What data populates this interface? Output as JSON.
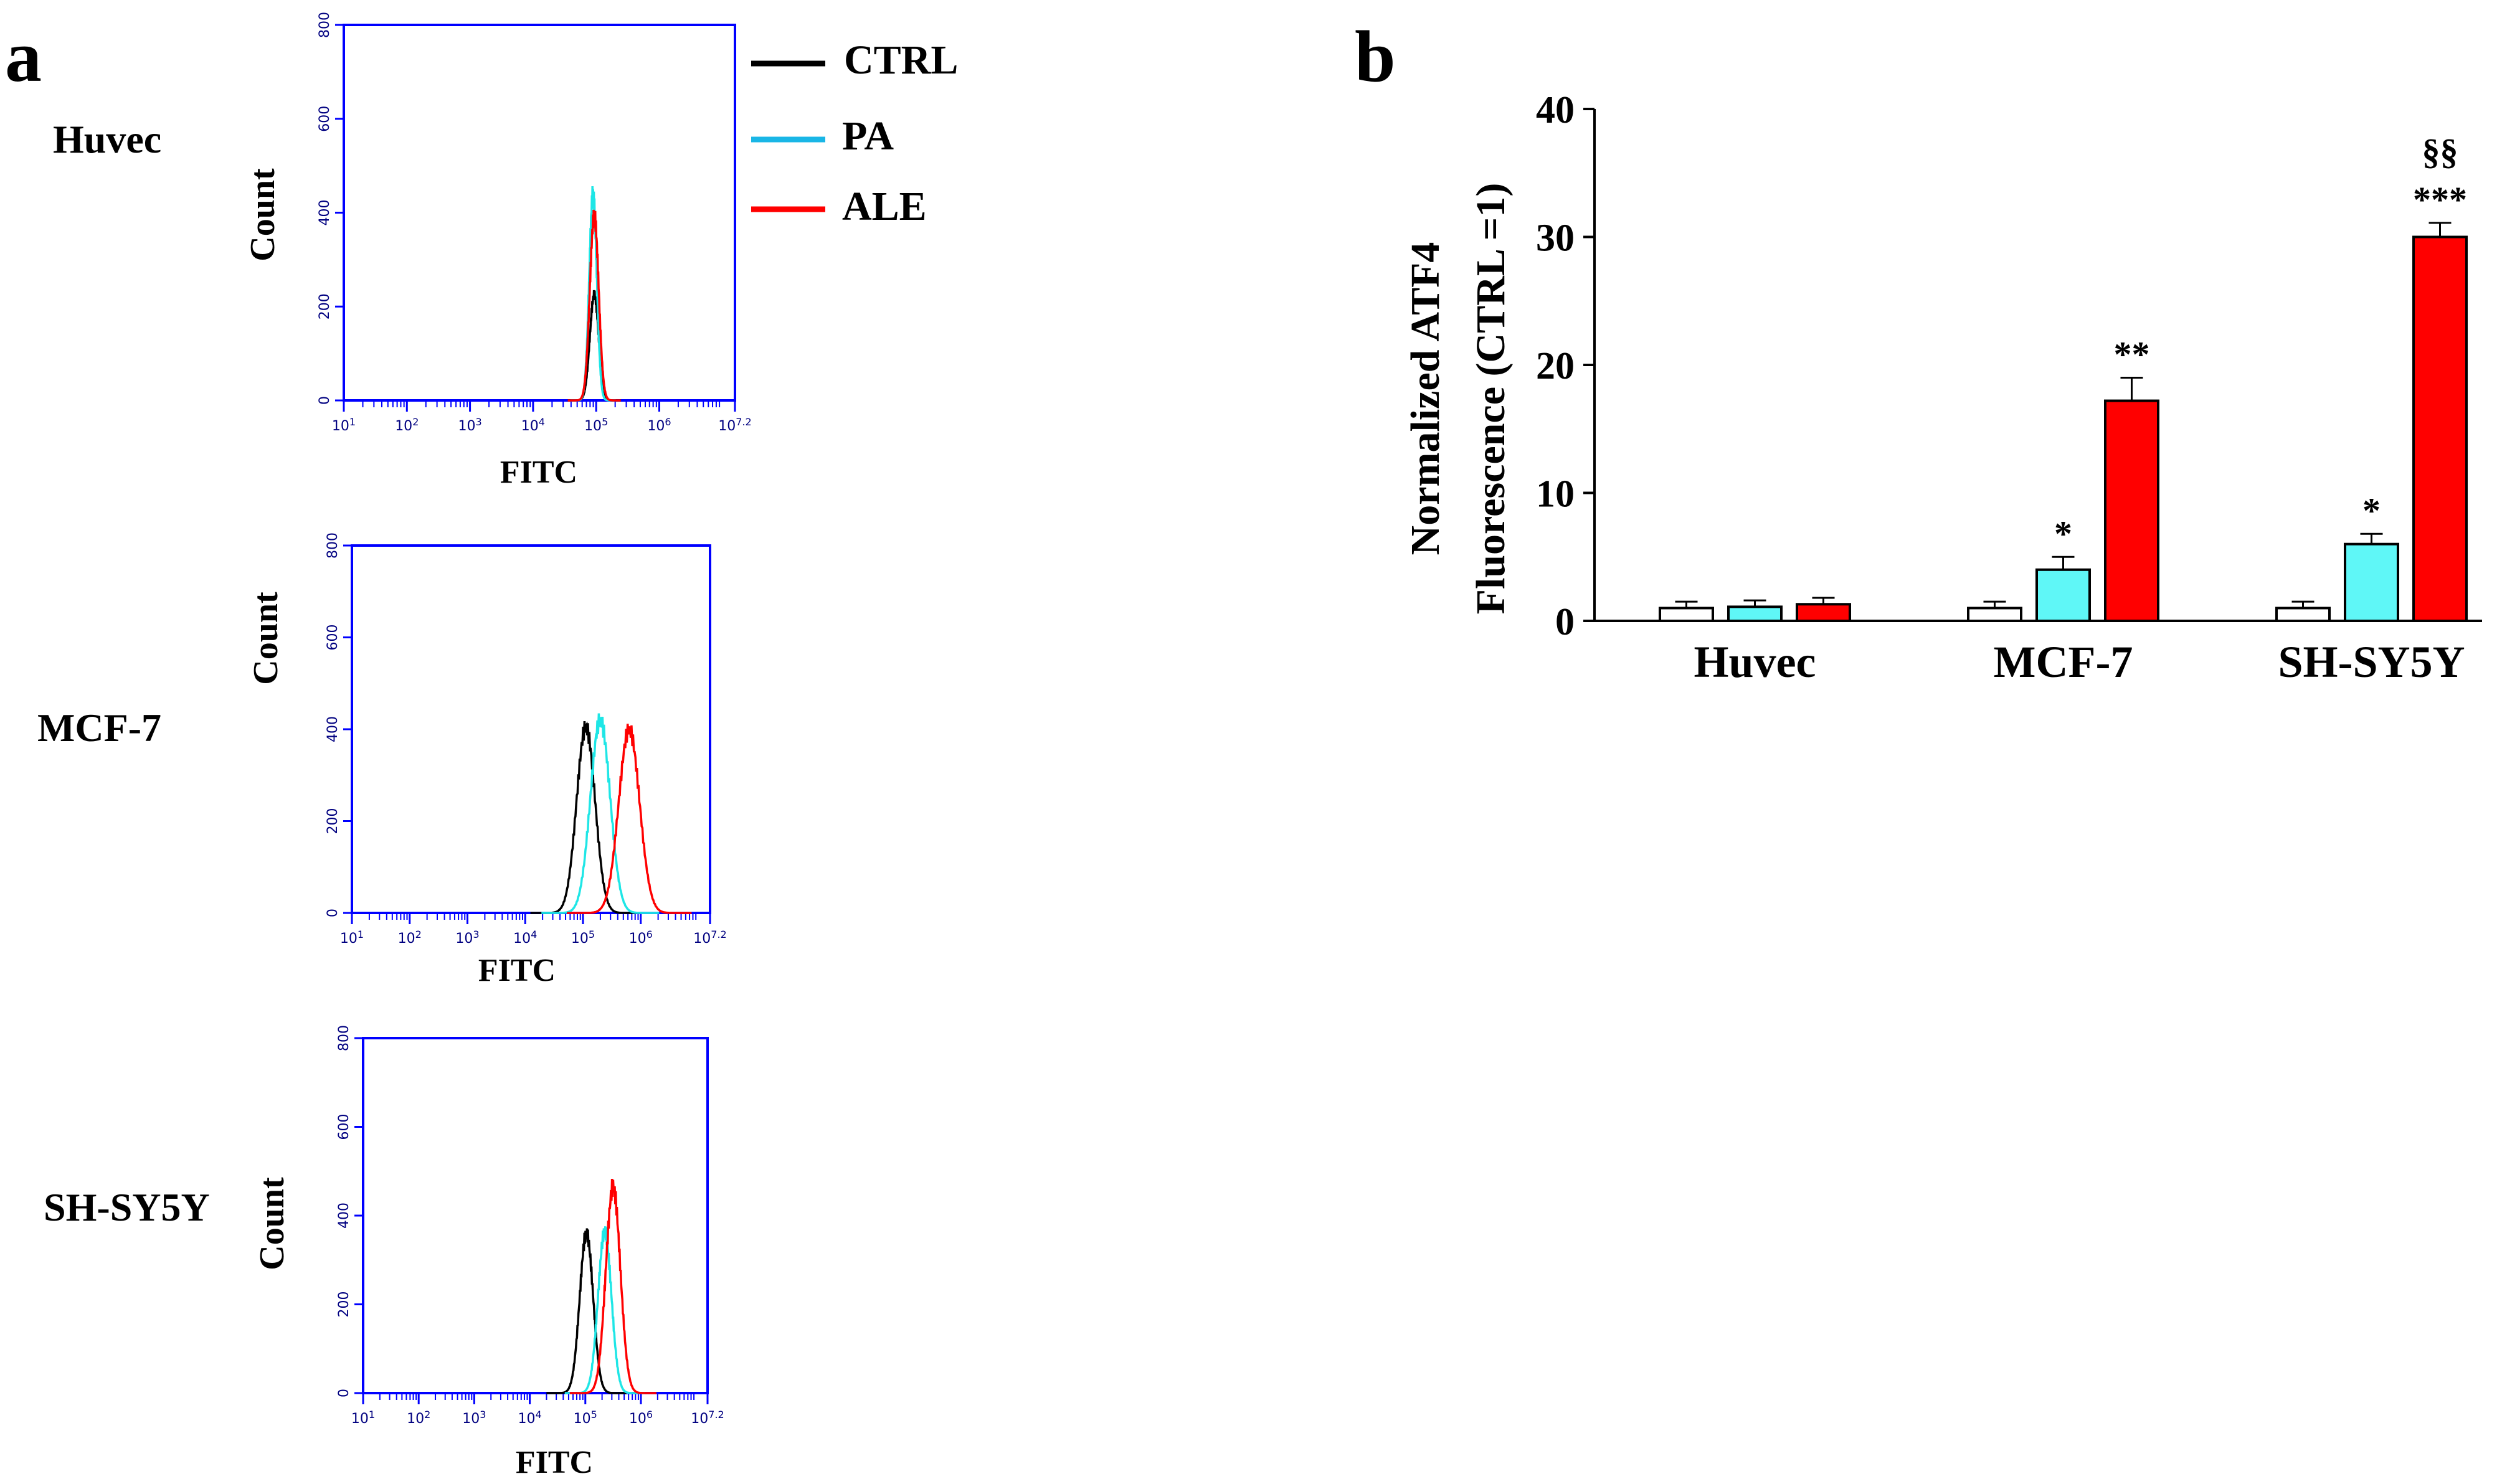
{
  "figure": {
    "panel_a_label": "a",
    "panel_b_label": "b",
    "legend": [
      {
        "name": "CTRL",
        "color": "#000000"
      },
      {
        "name": "PA",
        "color": "#19b6e6"
      },
      {
        "name": "ALE",
        "color": "#ff0000"
      }
    ]
  },
  "chart_data": [
    {
      "type": "line",
      "panel": "a",
      "title": "Huvec",
      "xlabel": "FITC",
      "ylabel": "Count",
      "xscale": "log",
      "xlim": [
        1,
        7.2
      ],
      "ylim": [
        0,
        800
      ],
      "yticks": [
        "0",
        "200",
        "400",
        "600",
        "800"
      ],
      "xticks": [
        "10^1",
        "10^2",
        "10^3",
        "10^4",
        "10^5",
        "10^6",
        "10^7.2"
      ],
      "series": [
        {
          "name": "CTRL",
          "color": "#000000",
          "peak_log": 4.97,
          "peak": 225,
          "width": 0.07
        },
        {
          "name": "PA",
          "color": "#1ee6e6",
          "peak_log": 4.95,
          "peak": 440,
          "width": 0.06
        },
        {
          "name": "ALE",
          "color": "#ff0000",
          "peak_log": 4.97,
          "peak": 395,
          "width": 0.07
        }
      ]
    },
    {
      "type": "line",
      "panel": "a",
      "title": "MCF-7",
      "xlabel": "FITC",
      "ylabel": "Count",
      "xscale": "log",
      "xlim": [
        1,
        7.2
      ],
      "ylim": [
        0,
        800
      ],
      "yticks": [
        "0",
        "200",
        "400",
        "600",
        "800"
      ],
      "xticks": [
        "10^1",
        "10^2",
        "10^3",
        "10^4",
        "10^5",
        "10^6",
        "10^7.2"
      ],
      "series": [
        {
          "name": "CTRL",
          "color": "#000000",
          "peak_log": 5.05,
          "peak": 405,
          "width": 0.16
        },
        {
          "name": "PA",
          "color": "#1ee6e6",
          "peak_log": 5.3,
          "peak": 420,
          "width": 0.17
        },
        {
          "name": "ALE",
          "color": "#ff0000",
          "peak_log": 5.8,
          "peak": 400,
          "width": 0.18
        }
      ]
    },
    {
      "type": "line",
      "panel": "a",
      "title": "SH-SY5Y",
      "xlabel": "FITC",
      "ylabel": "Count",
      "xscale": "log",
      "xlim": [
        1,
        7.2
      ],
      "ylim": [
        0,
        800
      ],
      "yticks": [
        "0",
        "200",
        "400",
        "600",
        "800"
      ],
      "xticks": [
        "10^1",
        "10^2",
        "10^3",
        "10^4",
        "10^5",
        "10^6",
        "10^7.2"
      ],
      "series": [
        {
          "name": "CTRL",
          "color": "#000000",
          "peak_log": 5.02,
          "peak": 360,
          "width": 0.12
        },
        {
          "name": "PA",
          "color": "#1ee6e6",
          "peak_log": 5.35,
          "peak": 365,
          "width": 0.12
        },
        {
          "name": "ALE",
          "color": "#ff0000",
          "peak_log": 5.5,
          "peak": 465,
          "width": 0.13
        }
      ]
    },
    {
      "type": "bar",
      "panel": "b",
      "title": "",
      "ylabel_line1": "Normalized ATF4",
      "ylabel_line2": "Fluorescence (CTRL =1)",
      "ylim": [
        0,
        40
      ],
      "yticks": [
        "0",
        "10",
        "20",
        "30",
        "40"
      ],
      "categories": [
        "Huvec",
        "MCF-7",
        "SH-SY5Y"
      ],
      "series": [
        {
          "name": "CTRL",
          "color": "#ffffff",
          "values": [
            1.0,
            1.0,
            1.0
          ],
          "errors": [
            0.5,
            0.5,
            0.5
          ],
          "sig": [
            "",
            "",
            ""
          ]
        },
        {
          "name": "PA",
          "color": "#5ff7f7",
          "values": [
            1.1,
            4.0,
            6.0
          ],
          "errors": [
            0.5,
            1.0,
            0.8
          ],
          "sig": [
            "",
            "*",
            "*"
          ]
        },
        {
          "name": "ALE",
          "color": "#ff0000",
          "values": [
            1.3,
            17.2,
            30.0
          ],
          "errors": [
            0.5,
            1.8,
            1.1
          ],
          "sig": [
            "",
            "**",
            "***"
          ]
        }
      ],
      "annotations": [
        {
          "category": "SH-SY5Y",
          "series": "ALE",
          "text": "§§"
        }
      ]
    }
  ]
}
